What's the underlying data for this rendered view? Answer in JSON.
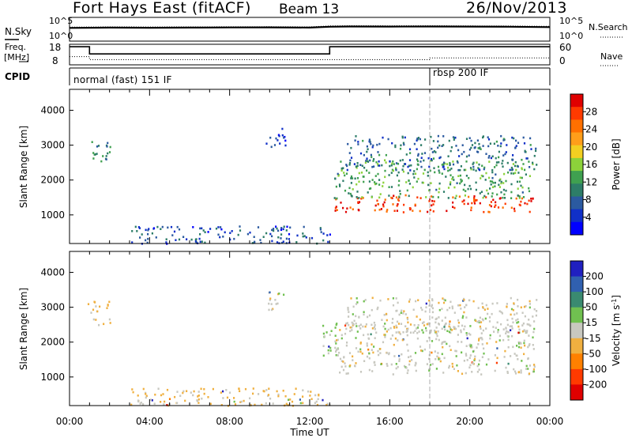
{
  "header": {
    "station": "Fort Hays East (fitACF)",
    "beam": "Beam 13",
    "date": "26/Nov/2013"
  },
  "noise_panel": {
    "left_label": "N.Sky",
    "left_ticks": [
      "10^5",
      "10^0"
    ],
    "right_ticks": [
      "10^5",
      "10^0"
    ],
    "right_label": "N.Search"
  },
  "freq_panel": {
    "label_line1": "Freq.",
    "label_line2": "[MHz]",
    "left_ticks": [
      "18",
      "8"
    ],
    "right_ticks": [
      "60",
      "0"
    ],
    "right_label": "Nave"
  },
  "cpid_panel": {
    "label": "CPID",
    "segments": [
      {
        "start_hour": 0,
        "end_hour": 18,
        "name": "normal (fast) 151 IF"
      },
      {
        "start_hour": 18,
        "end_hour": 24,
        "name": "rbsp 200 IF"
      }
    ]
  },
  "colorbars": {
    "power": {
      "label": "Power [dB]",
      "ticks": [
        "28",
        "24",
        "20",
        "16",
        "12",
        "8",
        "4"
      ],
      "colors": [
        "#e00000",
        "#ff3a00",
        "#ff7000",
        "#ff9e1a",
        "#f2cf21",
        "#8cd23a",
        "#3fa050",
        "#2d7d68",
        "#2b5aa0",
        "#1030c8",
        "#0000ff"
      ]
    },
    "velocity": {
      "label": "Velocity [m s",
      "label_superscript": "-1",
      "label_close": "]",
      "ticks": [
        "200",
        "100",
        "50",
        "15",
        "-15",
        "-50",
        "-100",
        "-200"
      ],
      "colors": [
        "#2020c0",
        "#3060b0",
        "#3a8a70",
        "#70c050",
        "#c8c8c0",
        "#f0b040",
        "#ff8000",
        "#ff3a00",
        "#e00000"
      ]
    }
  },
  "chart_data": [
    {
      "type": "line",
      "title": "Fort Hays East (fitACF)  Beam 13  26/Nov/2013",
      "xlabel": "",
      "ylabel": "N.Sky",
      "x_range_hours": [
        0,
        24
      ],
      "y_scale": "log",
      "ylim": [
        1,
        100000
      ],
      "series": [
        {
          "name": "N.Sky",
          "x_hours": [
            0,
            2,
            4,
            6,
            8,
            10,
            12,
            13,
            14,
            16,
            18,
            20,
            22,
            24
          ],
          "values": [
            600,
            700,
            650,
            700,
            750,
            800,
            700,
            1100,
            1200,
            1150,
            1200,
            1150,
            1100,
            900
          ]
        },
        {
          "name": "N.Search",
          "x_hours": [
            0,
            2,
            4,
            6,
            8,
            10,
            12,
            13,
            14,
            16,
            18,
            20,
            22,
            24
          ],
          "values": [
            900,
            1000,
            950,
            1000,
            1050,
            1100,
            1000,
            1600,
            1700,
            1650,
            1700,
            1600,
            1550,
            1300
          ]
        }
      ]
    },
    {
      "type": "line",
      "xlabel": "",
      "ylabel": "Freq. [MHz]",
      "x_range_hours": [
        0,
        24
      ],
      "ylim": [
        8,
        18
      ],
      "y2lim": [
        0,
        60
      ],
      "series": [
        {
          "name": "Freq.",
          "x_hours": [
            0,
            1,
            1,
            13,
            13,
            24
          ],
          "values": [
            16.8,
            16.8,
            13.3,
            13.3,
            16.8,
            16.8
          ]
        },
        {
          "name": "Nave",
          "x_hours": [
            0,
            1,
            1,
            18,
            18,
            24
          ],
          "values": [
            24,
            24,
            15,
            15,
            20,
            20
          ]
        }
      ]
    },
    {
      "type": "heatmap",
      "xlabel": "",
      "ylabel": "Slant Range [km]",
      "quantity": "Power [dB]",
      "x_ticks": [
        "00:00",
        "04:00",
        "08:00",
        "12:00",
        "16:00",
        "20:00",
        "00:00"
      ],
      "x_range_hours": [
        0,
        24
      ],
      "y_ticks": [
        "4000",
        "3000",
        "2000",
        "1000"
      ],
      "ylim": [
        180,
        4600
      ],
      "zlim": [
        0,
        30
      ],
      "echo_regions": [
        {
          "t0": 0.9,
          "t1": 2.0,
          "r0": 2500,
          "r1": 3200,
          "value": 10
        },
        {
          "t0": 9.8,
          "t1": 10.8,
          "r0": 2900,
          "r1": 3500,
          "value": 5
        },
        {
          "t0": 13.2,
          "t1": 23.2,
          "r0": 1100,
          "r1": 1600,
          "value": 26
        },
        {
          "t0": 13.2,
          "t1": 23.2,
          "r0": 1500,
          "r1": 2600,
          "value": 12
        },
        {
          "t0": 13.8,
          "t1": 23.3,
          "r0": 2300,
          "r1": 3300,
          "value": 8
        },
        {
          "t0": 3.0,
          "t1": 13.0,
          "r0": 200,
          "r1": 700,
          "value": 6
        }
      ]
    },
    {
      "type": "heatmap",
      "xlabel": "Time UT",
      "ylabel": "Slant Range [km]",
      "quantity": "Velocity [m s-1]",
      "x_ticks": [
        "00:00",
        "04:00",
        "08:00",
        "12:00",
        "16:00",
        "20:00",
        "00:00"
      ],
      "x_range_hours": [
        0,
        24
      ],
      "y_ticks": [
        "4000",
        "3000",
        "2000",
        "1000"
      ],
      "ylim": [
        180,
        4600
      ],
      "zlim": [
        -200,
        200
      ],
      "echo_regions": [
        {
          "t0": 0.9,
          "t1": 2.0,
          "r0": 2500,
          "r1": 3200,
          "value": -40
        },
        {
          "t0": 9.8,
          "t1": 10.8,
          "r0": 2900,
          "r1": 3500,
          "value": 0
        },
        {
          "t0": 12.6,
          "t1": 13.4,
          "r0": 1500,
          "r1": 2600,
          "value": 30
        },
        {
          "t0": 13.2,
          "t1": 23.2,
          "r0": 1100,
          "r1": 2600,
          "value": 0
        },
        {
          "t0": 13.8,
          "t1": 23.3,
          "r0": 2300,
          "r1": 3300,
          "value": 0
        },
        {
          "t0": 3.0,
          "t1": 13.0,
          "r0": 200,
          "r1": 700,
          "value": -30
        }
      ]
    }
  ]
}
